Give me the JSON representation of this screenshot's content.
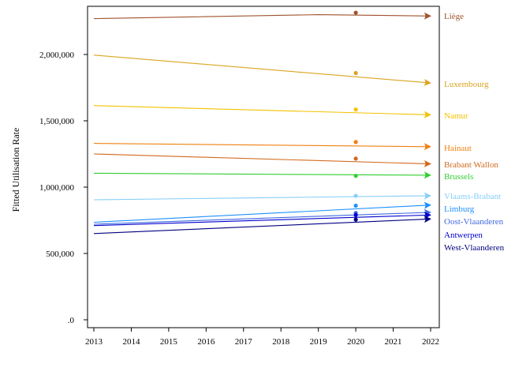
{
  "chart_data": {
    "type": "line",
    "ylabel": "Fitted Utilisation Rate",
    "xlabel": "",
    "xlim": [
      2013,
      2022
    ],
    "ylim": [
      0,
      2400000
    ],
    "x_ticks": [
      2013,
      2014,
      2015,
      2016,
      2017,
      2018,
      2019,
      2020,
      2021,
      2022
    ],
    "x_tick_labels": [
      "2013",
      "2014",
      "2015",
      "2016",
      "2017",
      "2018",
      "2019",
      "2020",
      "2021",
      "2022"
    ],
    "y_ticks": [
      0,
      500000,
      1000000,
      1500000,
      2000000
    ],
    "y_tick_labels": [
      ".0",
      "500,000",
      "1,000,000",
      "1,500,000",
      "2,000,000"
    ],
    "grid": false,
    "legend": "direct labels at right end of lines",
    "series": [
      {
        "name": "Liège",
        "color": "#a0522d",
        "x": [
          2013,
          2019,
          2022
        ],
        "values": [
          2270000,
          2300000,
          2290000
        ],
        "observed": {
          "x": 2020,
          "y": 2315000
        }
      },
      {
        "name": "Luxembourg",
        "color": "#daa520",
        "x": [
          2013,
          2022
        ],
        "values": [
          1995000,
          1785000
        ],
        "observed": {
          "x": 2020,
          "y": 1860000
        }
      },
      {
        "name": "Namur",
        "color": "#f2c200",
        "x": [
          2013,
          2022
        ],
        "values": [
          1615000,
          1545000
        ],
        "observed": {
          "x": 2020,
          "y": 1585000
        }
      },
      {
        "name": "Hainaut",
        "color": "#f08010",
        "x": [
          2013,
          2022
        ],
        "values": [
          1330000,
          1305000
        ],
        "observed": {
          "x": 2020,
          "y": 1340000
        }
      },
      {
        "name": "Brabant Wallon",
        "color": "#d2691e",
        "x": [
          2013,
          2022
        ],
        "values": [
          1250000,
          1175000
        ],
        "observed": {
          "x": 2020,
          "y": 1215000
        }
      },
      {
        "name": "Brussels",
        "color": "#32cd32",
        "x": [
          2013,
          2022
        ],
        "values": [
          1105000,
          1090000
        ],
        "observed": {
          "x": 2020,
          "y": 1085000
        }
      },
      {
        "name": "Vlaams-Brabant",
        "color": "#87cefa",
        "x": [
          2013,
          2022
        ],
        "values": [
          905000,
          935000
        ],
        "observed": {
          "x": 2020,
          "y": 935000
        }
      },
      {
        "name": "Limburg",
        "color": "#1e90ff",
        "x": [
          2013,
          2022
        ],
        "values": [
          735000,
          865000
        ],
        "observed": {
          "x": 2020,
          "y": 860000
        }
      },
      {
        "name": "Oost-Vlaanderen",
        "color": "#4169e1",
        "x": [
          2013,
          2022
        ],
        "values": [
          720000,
          810000
        ],
        "observed": {
          "x": 2020,
          "y": 805000
        }
      },
      {
        "name": "Antwerpen",
        "color": "#0000cd",
        "x": [
          2013,
          2022
        ],
        "values": [
          710000,
          790000
        ],
        "observed": {
          "x": 2020,
          "y": 790000
        }
      },
      {
        "name": "West-Vlaanderen",
        "color": "#000080",
        "x": [
          2013,
          2022
        ],
        "values": [
          650000,
          760000
        ],
        "observed": {
          "x": 2020,
          "y": 755000
        }
      }
    ]
  }
}
